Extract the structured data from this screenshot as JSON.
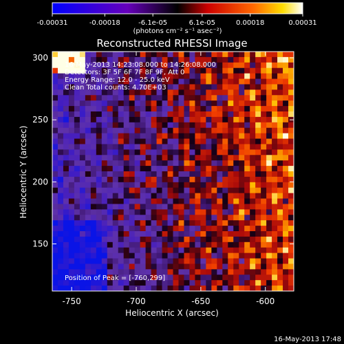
{
  "colorbar": {
    "ticks": [
      "-0.00031",
      "-0.00018",
      "-6.1e-05",
      "6.1e-05",
      "0.00018",
      "0.00031"
    ],
    "tick_values": [
      -0.00031,
      -0.00018,
      -6.1e-05,
      6.1e-05,
      0.00018,
      0.00031
    ],
    "range": [
      -0.00031,
      0.00031
    ],
    "units": "(photons cm⁻² s⁻¹ asec⁻²)"
  },
  "annotations": [
    "16-May-2013 14:23:08.000 to 14:26:08.000",
    "Detectors: 3F 5F 6F 7F 8F 9F, Att 0",
    "Energy Range: 12.0 - 25.0 keV",
    "Clean     Total counts: 4.70E+03"
  ],
  "peak_text": "Position of Peak = [-760,299]",
  "footer_timestamp": "16-May-2013 17:48",
  "chart_data": {
    "type": "heatmap",
    "title": "Reconstructed RHESSI Image",
    "xlabel": "Heliocentric X (arcsec)",
    "ylabel": "Heliocentric Y (arcsec)",
    "xlim": [
      -765,
      -578
    ],
    "ylim": [
      112,
      305
    ],
    "xticks": [
      -750,
      -700,
      -650,
      -600
    ],
    "yticks": [
      150,
      200,
      250,
      300
    ],
    "peak": [
      -760,
      299
    ],
    "colormap": {
      "low": "#0000ff",
      "mid_low": "#6600bb",
      "mid": "#000000",
      "mid_high": "#ff2200",
      "high": "#ffffff"
    }
  }
}
